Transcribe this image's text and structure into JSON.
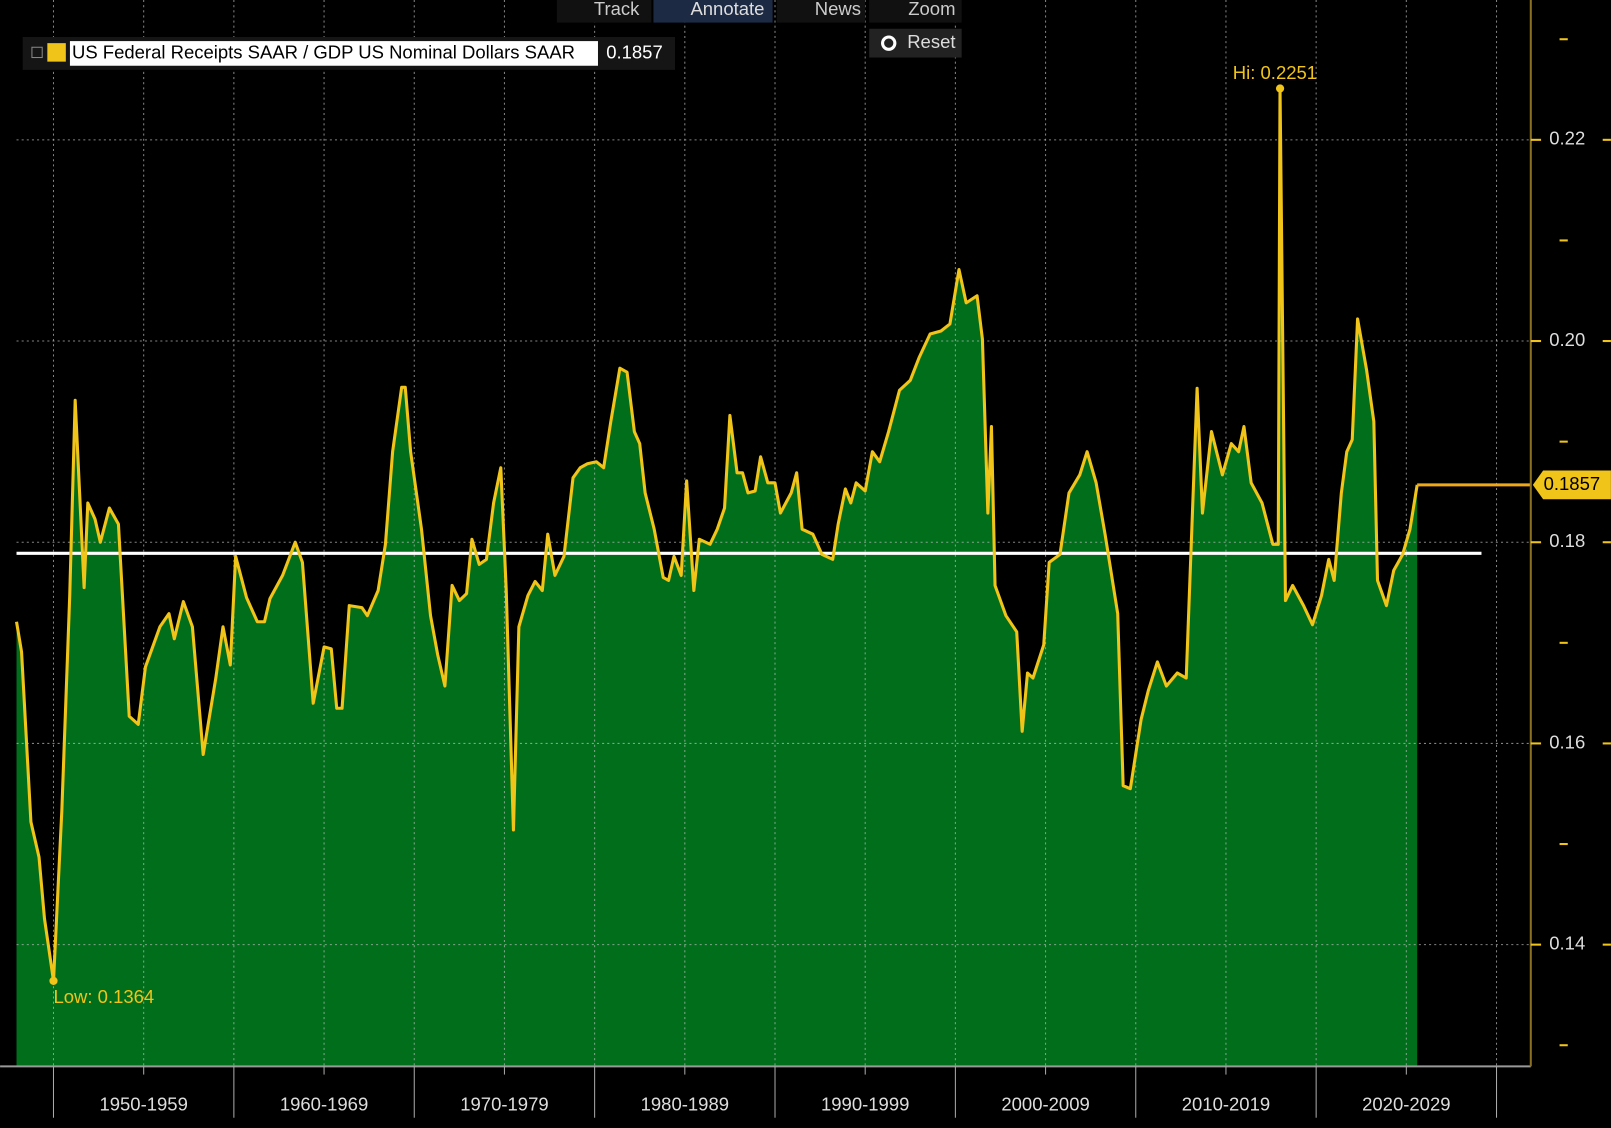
{
  "toolbar": [
    "Track",
    "Annotate",
    "News",
    "Zoom",
    "Reset"
  ],
  "chart_data": {
    "type": "area",
    "legend": {
      "name": "US Federal Receipts SAAR / GDP US Nominal Dollars SAAR",
      "value": 0.1857
    },
    "series": [
      {
        "name": "US Federal Receipts SAAR / GDP US Nominal Dollars SAAR",
        "color": "#f0c419",
        "fill": "#006e1b",
        "x": [
          1947.95,
          1948.23,
          1948.75,
          1949.2,
          1949.5,
          1950.0,
          1950.46,
          1950.9,
          1951.2,
          1951.7,
          1951.9,
          1952.3,
          1952.6,
          1953.1,
          1953.6,
          1954.2,
          1954.7,
          1955.1,
          1955.9,
          1956.4,
          1956.7,
          1957.2,
          1957.7,
          1958.3,
          1959.0,
          1959.4,
          1959.8,
          1960.1,
          1960.7,
          1961.3,
          1961.7,
          1962.0,
          1962.7,
          1963.4,
          1963.8,
          1964.4,
          1965.0,
          1965.4,
          1965.7,
          1966.0,
          1966.4,
          1967.1,
          1967.4,
          1968.0,
          1968.4,
          1968.8,
          1969.3,
          1969.5,
          1969.8,
          1970.4,
          1970.9,
          1971.3,
          1971.7,
          1972.1,
          1972.5,
          1972.9,
          1973.2,
          1973.6,
          1974.0,
          1974.4,
          1974.8,
          1975.1,
          1975.5,
          1975.8,
          1976.3,
          1976.7,
          1977.1,
          1977.4,
          1977.8,
          1978.3,
          1978.8,
          1979.2,
          1979.6,
          1980.1,
          1980.5,
          1980.9,
          1981.4,
          1981.8,
          1982.2,
          1982.5,
          1982.8,
          1983.3,
          1983.8,
          1984.1,
          1984.4,
          1984.8,
          1985.1,
          1985.5,
          1985.8,
          1986.4,
          1986.8,
          1987.2,
          1987.5,
          1987.9,
          1988.2,
          1988.5,
          1988.9,
          1989.2,
          1989.6,
          1990.0,
          1990.3,
          1990.9,
          1991.2,
          1991.5,
          1992.1,
          1992.6,
          1993.2,
          1993.5,
          1993.9,
          1994.2,
          1994.5,
          1995.0,
          1995.4,
          1995.8,
          1996.3,
          1996.9,
          1997.5,
          1998.0,
          1998.6,
          1999.2,
          1999.7,
          2000.2,
          2000.6,
          2001.2,
          2001.5,
          2001.8,
          2002.0,
          2002.2,
          2002.8,
          2003.4,
          2003.7,
          2004.0,
          2004.3,
          2004.9,
          2005.2,
          2005.8,
          2006.3,
          2006.9,
          2007.3,
          2007.8,
          2008.3,
          2009.0,
          2009.3,
          2009.7,
          2010.3,
          2010.7,
          2011.2,
          2011.7,
          2012.3,
          2012.8,
          2013.4,
          2013.7,
          2014.2,
          2014.8,
          2015.3,
          2015.7,
          2016.0,
          2016.4,
          2017.0,
          2017.6,
          2017.9,
          2018.0,
          2018.3,
          2018.7,
          2019.3,
          2019.8,
          2020.3,
          2020.7,
          2021.0,
          2021.4,
          2021.7,
          2022.0,
          2022.3,
          2022.8,
          2023.2,
          2023.4,
          2023.9,
          2024.3,
          2024.8,
          2025.2,
          2025.6
        ],
        "values": [
          0.1721,
          0.1691,
          0.1522,
          0.1487,
          0.1426,
          0.1364,
          0.1533,
          0.1747,
          0.1941,
          0.1755,
          0.1839,
          0.1823,
          0.18,
          0.1834,
          0.1818,
          0.1627,
          0.1619,
          0.1676,
          0.1716,
          0.1729,
          0.1704,
          0.1741,
          0.1716,
          0.1589,
          0.1665,
          0.1716,
          0.1678,
          0.1786,
          0.1745,
          0.1721,
          0.1721,
          0.1744,
          0.1767,
          0.18,
          0.178,
          0.164,
          0.1696,
          0.1694,
          0.1635,
          0.1635,
          0.1737,
          0.1735,
          0.1727,
          0.1752,
          0.1798,
          0.189,
          0.1954,
          0.1954,
          0.189,
          0.1813,
          0.1727,
          0.1688,
          0.1657,
          0.1757,
          0.1742,
          0.1749,
          0.1803,
          0.1778,
          0.1783,
          0.1839,
          0.1874,
          0.1752,
          0.1514,
          0.1716,
          0.1747,
          0.1761,
          0.1752,
          0.1808,
          0.1767,
          0.1786,
          0.1864,
          0.1874,
          0.1878,
          0.188,
          0.1874,
          0.192,
          0.1973,
          0.1969,
          0.191,
          0.1898,
          0.1849,
          0.1813,
          0.1765,
          0.1762,
          0.1786,
          0.1767,
          0.1861,
          0.1752,
          0.1803,
          0.1798,
          0.1813,
          0.1834,
          0.1926,
          0.1869,
          0.1869,
          0.1849,
          0.1851,
          0.1885,
          0.1859,
          0.1859,
          0.1829,
          0.1849,
          0.1869,
          0.1813,
          0.1808,
          0.1788,
          0.1783,
          0.1818,
          0.1853,
          0.1839,
          0.1859,
          0.1851,
          0.189,
          0.188,
          0.191,
          0.1951,
          0.1961,
          0.1984,
          0.2007,
          0.201,
          0.2017,
          0.2071,
          0.2038,
          0.2045,
          0.2002,
          0.1829,
          0.1915,
          0.1757,
          0.1727,
          0.1711,
          0.1612,
          0.167,
          0.1665,
          0.1698,
          0.178,
          0.1788,
          0.1849,
          0.1867,
          0.189,
          0.1859,
          0.1808,
          0.1729,
          0.1558,
          0.1555,
          0.1624,
          0.1653,
          0.1681,
          0.1657,
          0.167,
          0.1665,
          0.1953,
          0.1829,
          0.191,
          0.1867,
          0.1898,
          0.189,
          0.1915,
          0.1859,
          0.1839,
          0.1798,
          0.1798,
          0.2251,
          0.1742,
          0.1757,
          0.1737,
          0.1718,
          0.1747,
          0.1783,
          0.1762,
          0.1849,
          0.189,
          0.1902,
          0.2022,
          0.1971,
          0.192,
          0.1762,
          0.1737,
          0.1772,
          0.1788,
          0.1813,
          0.1857
        ]
      }
    ],
    "reference_line": {
      "value": 0.1789,
      "color": "#ffffff"
    },
    "last_value": {
      "label": "0.1857",
      "color": "#f0a818"
    },
    "annotations": [
      {
        "text": "Hi: 0.2251",
        "x": 2018.0,
        "y": 0.2251
      },
      {
        "text": "Low: 0.1364",
        "x": 1950.0,
        "y": 0.1364
      }
    ],
    "xlim": [
      1947.95,
      2031.9
    ],
    "xticks": [
      {
        "value": 1955,
        "label": "1950-1959"
      },
      {
        "value": 1965,
        "label": "1960-1969"
      },
      {
        "value": 1975,
        "label": "1970-1979"
      },
      {
        "value": 1985,
        "label": "1980-1989"
      },
      {
        "value": 1995,
        "label": "1990-1999"
      },
      {
        "value": 2005,
        "label": "2000-2009"
      },
      {
        "value": 2015,
        "label": "2010-2019"
      },
      {
        "value": 2025,
        "label": "2020-2029"
      }
    ],
    "xminor": [
      1950,
      1960,
      1970,
      1980,
      1990,
      2000,
      2010,
      2020,
      2030
    ],
    "ylim": [
      0.1279,
      0.2339
    ],
    "yticks": [
      0.14,
      0.16,
      0.18,
      {
        "value": 0.2,
        "label": "0.20"
      },
      0.22
    ],
    "yminor": [
      0.13,
      0.15,
      0.17,
      0.19,
      0.21,
      0.23
    ],
    "grid": true,
    "axis_side": "right"
  }
}
